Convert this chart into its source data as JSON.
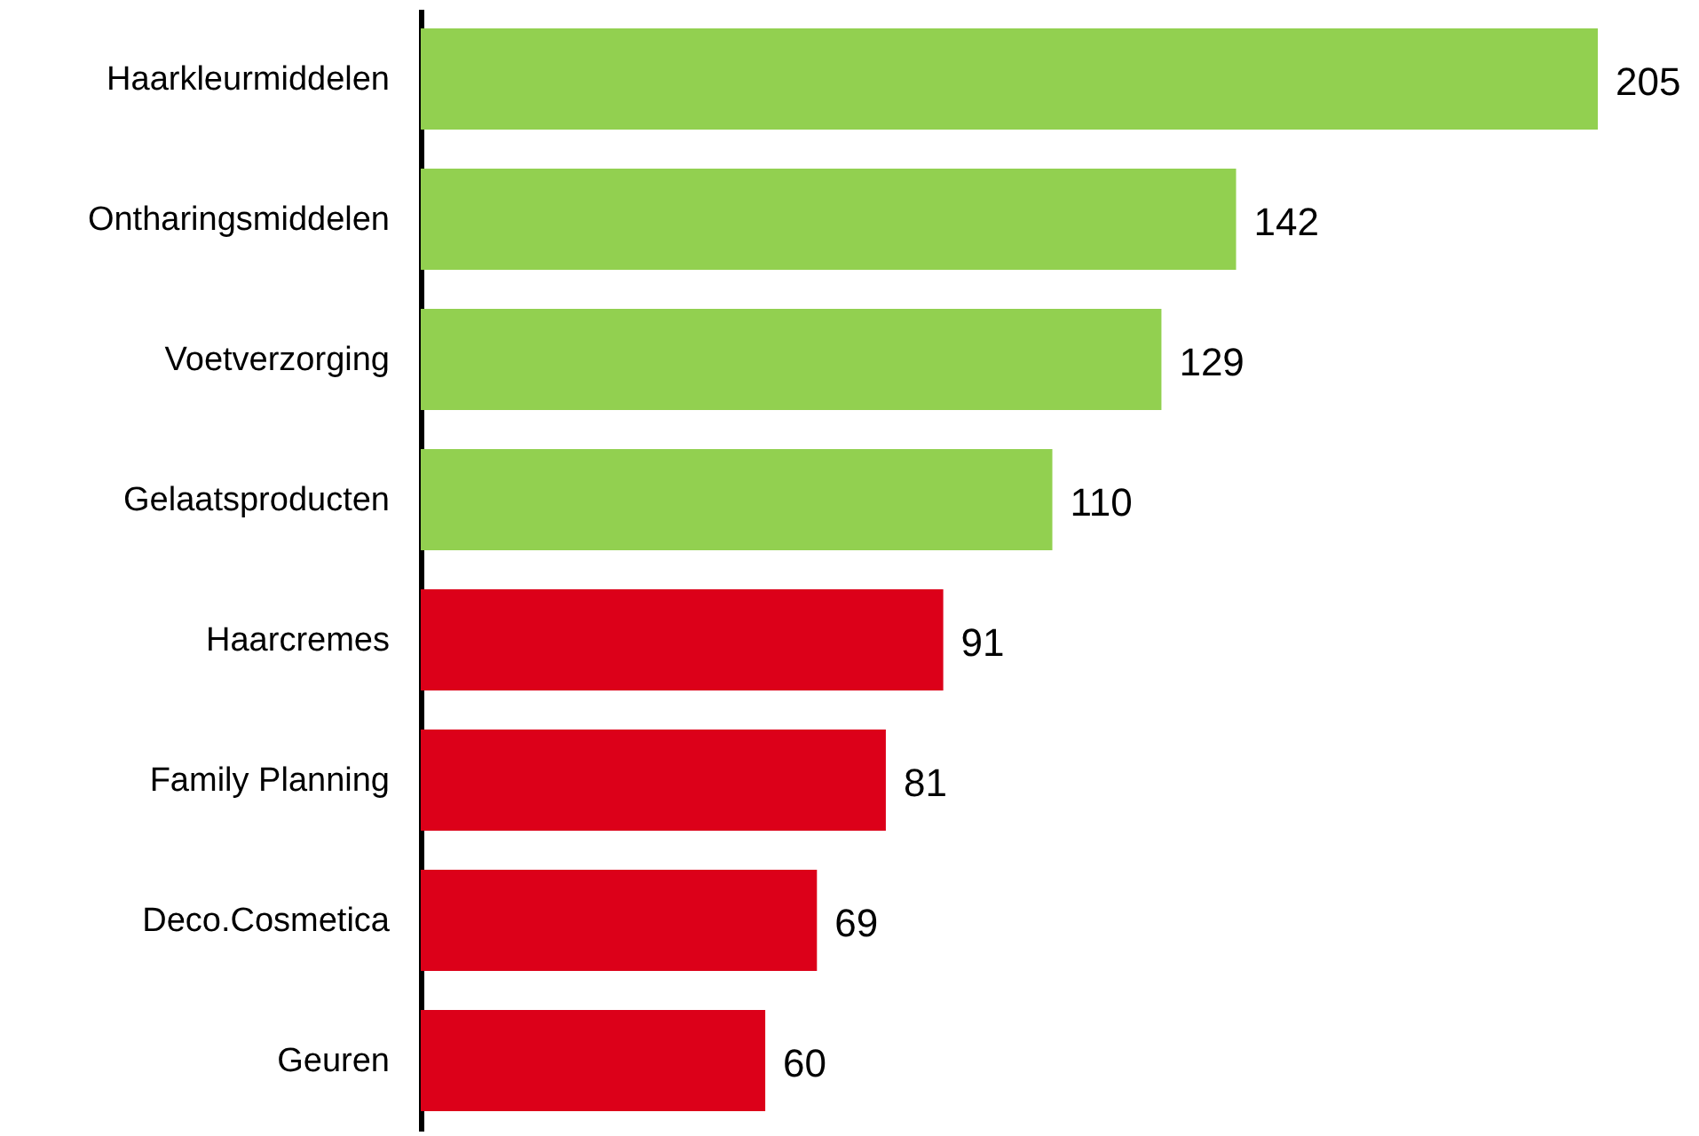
{
  "chart_data": {
    "type": "bar",
    "orientation": "horizontal",
    "categories": [
      "Haarkleurmiddelen",
      "Ontharingsmiddelen",
      "Voetverzorging",
      "Gelaatsproducten",
      "Haarcremes",
      "Family Planning",
      "Deco.Cosmetica",
      "Geuren"
    ],
    "values": [
      205,
      142,
      129,
      110,
      91,
      81,
      69,
      60
    ],
    "colors": [
      "#92d050",
      "#92d050",
      "#92d050",
      "#92d050",
      "#dc0019",
      "#dc0019",
      "#dc0019",
      "#dc0019"
    ],
    "data_labels": true
  }
}
